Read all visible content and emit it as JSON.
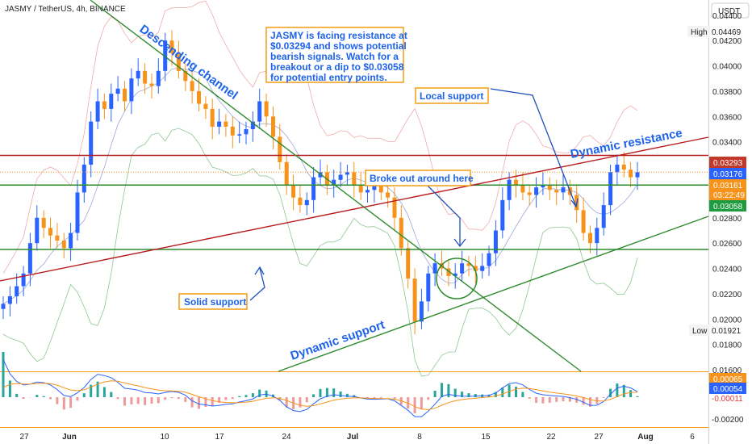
{
  "chart_data": {
    "type": "candlestick",
    "title": "JASMY / TetherUS, 4h, BINANCE",
    "currency": "USDT",
    "y_ticks": [
      "0.04400",
      "0.04200",
      "0.04000",
      "0.03800",
      "0.03600",
      "0.03400",
      "0.02800",
      "0.02600",
      "0.02400",
      "0.02200",
      "0.02000",
      "0.01800",
      "0.01600"
    ],
    "x_ticks": [
      "27",
      "Jun",
      "10",
      "17",
      "24",
      "Jul",
      "8",
      "15",
      "22",
      "27",
      "Aug",
      "6"
    ],
    "ylim": [
      0.016,
      0.0452
    ],
    "high": {
      "label": "High",
      "value": "0.04469"
    },
    "low": {
      "label": "Low",
      "value": "0.01921"
    },
    "price_badges": [
      {
        "value": "0.03293",
        "color": "#c0392b"
      },
      {
        "value": "0.03176",
        "color": "#2962ff"
      },
      {
        "value": "0.03161",
        "color": "#f7931a"
      },
      {
        "value": "03:22:49",
        "color": "#f7931a"
      },
      {
        "value": "0.03058",
        "color": "#1e9c3f"
      }
    ],
    "horizontal_levels": [
      {
        "value": 0.03293,
        "color": "#b71c1c"
      },
      {
        "value": 0.03058,
        "color": "#2e8b2e"
      },
      {
        "value": 0.0255,
        "color": "#2e8b2e"
      }
    ],
    "annotations": {
      "main_note": [
        "JASMY is facing resistance at",
        "$0.03294 and shows potential",
        "bearish signals. Watch for a",
        "breakout or a dip to $0.03058",
        "for potential entry points."
      ],
      "local_support": "Local support",
      "broke_out": "Broke out around here",
      "solid_support": "Solid support",
      "descending_channel": "Descending channel",
      "dynamic_resistance": "Dynamic resistance",
      "dynamic_support": "Dynamic support"
    },
    "indicator": {
      "type": "macd",
      "badges": [
        {
          "value": "0.00065",
          "color": "#f7931a"
        },
        {
          "value": "0.00054",
          "color": "#2962ff"
        },
        {
          "value": "-0.00011",
          "color": "#e53935"
        }
      ],
      "y_ticks": [
        "-0.00200"
      ]
    },
    "series": [
      {
        "name": "price",
        "values": [
          0.0212,
          0.0218,
          0.0226,
          0.0236,
          0.026,
          0.028,
          0.0272,
          0.0266,
          0.0262,
          0.0256,
          0.0268,
          0.03,
          0.0322,
          0.0356,
          0.0372,
          0.0366,
          0.0378,
          0.0382,
          0.0372,
          0.039,
          0.0396,
          0.0386,
          0.0384,
          0.0396,
          0.042,
          0.041,
          0.0396,
          0.0388,
          0.038,
          0.037,
          0.0366,
          0.0352,
          0.0356,
          0.0352,
          0.0345,
          0.0346,
          0.035,
          0.0356,
          0.0372,
          0.036,
          0.0344,
          0.0324,
          0.0306,
          0.0296,
          0.029,
          0.0294,
          0.0312,
          0.0316,
          0.0306,
          0.031,
          0.0314,
          0.0316,
          0.0306,
          0.03,
          0.0302,
          0.0308,
          0.03,
          0.0296,
          0.028,
          0.0256,
          0.0232,
          0.0198,
          0.0214,
          0.0236,
          0.0244,
          0.024,
          0.0234,
          0.0236,
          0.0244,
          0.0242,
          0.0238,
          0.0242,
          0.0252,
          0.027,
          0.0294,
          0.031,
          0.0306,
          0.03,
          0.0298,
          0.0304,
          0.0306,
          0.0302,
          0.03,
          0.0304,
          0.0298,
          0.0286,
          0.0268,
          0.026,
          0.0272,
          0.029,
          0.0316,
          0.0322,
          0.0318,
          0.0312,
          0.0316
        ]
      }
    ]
  }
}
